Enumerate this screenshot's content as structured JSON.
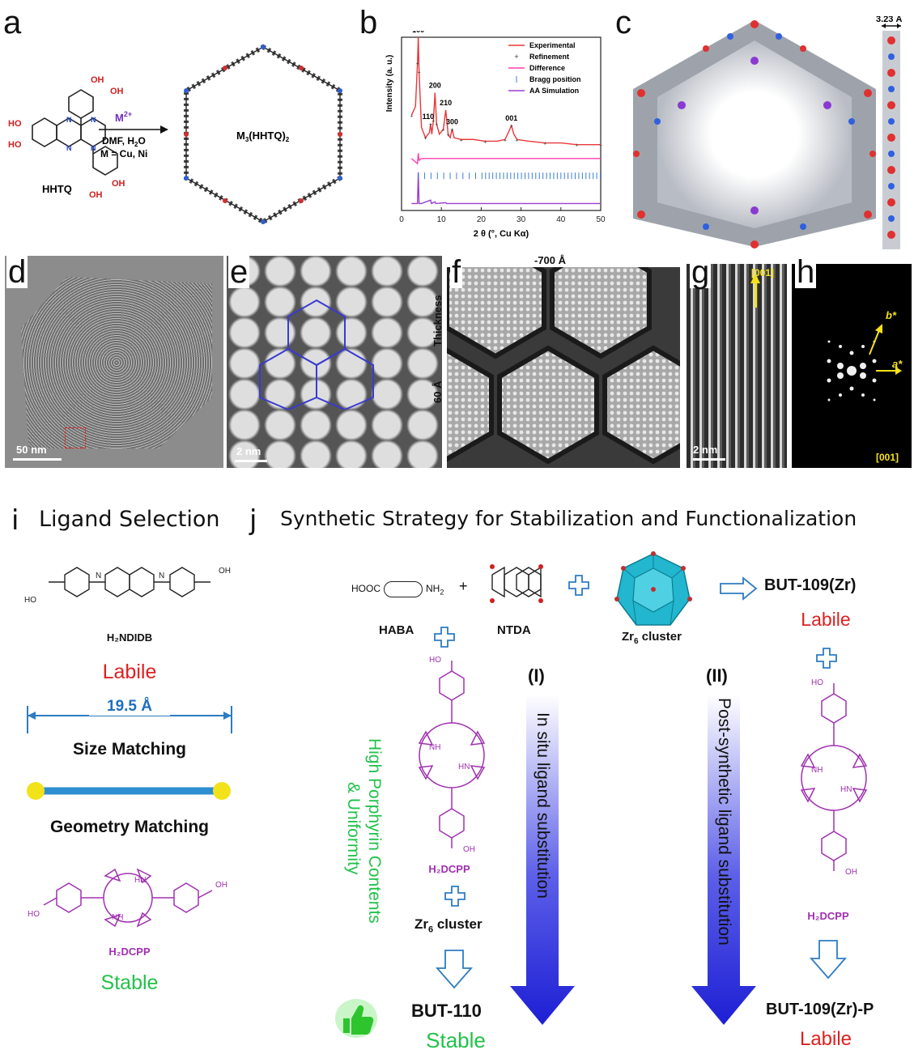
{
  "letters": {
    "a": "a",
    "b": "b",
    "c": "c",
    "d": "d",
    "e": "e",
    "f": "f",
    "g": "g",
    "h": "h",
    "i": "i",
    "j": "j"
  },
  "panel_a": {
    "monomer": "HHTQ",
    "metal": "M",
    "metal_sup": "2+",
    "cond_line1": "DMF, H",
    "cond_line1_sub": "2",
    "cond_line1_end": "O",
    "cond_line2": "M = Cu, Ni",
    "product": "M",
    "product_sub1": "3",
    "product_mid": "(HHTQ)",
    "product_sub2": "2"
  },
  "panel_c": {
    "spacing": "3.23 Å"
  },
  "panel_d": {
    "scale": "50 nm"
  },
  "panel_e": {
    "scale": "2 nm"
  },
  "panel_f": {
    "defocus": "-700 Å",
    "thickness_value": "60 Å",
    "thickness_label": "Thickness"
  },
  "panel_g": {
    "scale": "2 nm",
    "direction": "[001]"
  },
  "panel_h": {
    "astar": "a*",
    "bstar": "b*",
    "zone": "[001]"
  },
  "panel_i": {
    "title": "Ligand Selection",
    "ligand1": "H₂NDIDB",
    "labile": "Labile",
    "length": "19.5 Å",
    "size_matching": "Size Matching",
    "geometry_matching": "Geometry Matching",
    "ligand2": "H₂DCPP",
    "stable": "Stable"
  },
  "panel_j": {
    "title": "Synthetic Strategy for Stabilization and Functionalization",
    "haba_formula_left": "HOOC",
    "haba_formula_right": "NH",
    "haba_sub": "2",
    "haba": "HABA",
    "plus": "+",
    "ntda": "NTDA",
    "zr6_cluster": "Zr",
    "zr6_sub": "6",
    "cluster_word": " cluster",
    "but109": "BUT-109(Zr)",
    "labile1": "Labile",
    "route1": "(I)",
    "route1_text": "In situ ligand substitution",
    "route2": "(II)",
    "route2_text": "Post-synthetic ligand substitution",
    "green_line1": "High Porphyrin Contents",
    "green_line2": "& Uniformity",
    "h2dcpp": "H₂DCPP",
    "but110": "BUT-110",
    "stable": "Stable",
    "but109p": "BUT-109(Zr)-P",
    "labile2": "Labile"
  },
  "chart_data": {
    "type": "line",
    "title": "",
    "xlabel": "2 θ (°, Cu Kα)",
    "ylabel": "Intensity (a. u.)",
    "xlim": [
      0,
      50
    ],
    "xticks": [
      "0",
      "10",
      "20",
      "30",
      "40",
      "50"
    ],
    "peaks": [
      {
        "label": "100",
        "x": 4.2
      },
      {
        "label": "110",
        "x": 7.3
      },
      {
        "label": "200",
        "x": 8.4
      },
      {
        "label": "210",
        "x": 11.1
      },
      {
        "label": "300",
        "x": 12.7
      },
      {
        "label": "001",
        "x": 27.6
      }
    ],
    "legend": [
      "Experimental",
      "Refinement",
      "Difference",
      "Bragg position",
      "AA Simulation"
    ],
    "legend_colors": {
      "Experimental": "#e8373a",
      "Refinement": "#333333",
      "Difference": "#ff3fb0",
      "Bragg position": "#3a7fd5",
      "AA Simulation": "#9a3fd0"
    },
    "series": [
      {
        "name": "Experimental",
        "x": [
          2.5,
          3.5,
          4.0,
          4.2,
          4.4,
          5,
          6,
          7,
          7.3,
          7.6,
          8,
          8.4,
          8.8,
          9.5,
          10.5,
          11.1,
          11.7,
          12.2,
          12.7,
          13.2,
          15,
          18,
          21,
          24,
          26,
          27.2,
          27.6,
          28.2,
          29,
          32,
          36,
          40,
          44,
          48,
          50
        ],
        "y": [
          0.55,
          0.6,
          0.85,
          1.0,
          0.8,
          0.48,
          0.42,
          0.45,
          0.5,
          0.44,
          0.52,
          0.68,
          0.5,
          0.44,
          0.47,
          0.58,
          0.44,
          0.42,
          0.47,
          0.42,
          0.41,
          0.41,
          0.4,
          0.4,
          0.41,
          0.47,
          0.49,
          0.44,
          0.41,
          0.4,
          0.39,
          0.39,
          0.38,
          0.38,
          0.38
        ]
      },
      {
        "name": "Difference",
        "x": [
          2.5,
          4.0,
          4.2,
          4.4,
          5,
          8,
          12,
          20,
          30,
          40,
          50
        ],
        "y": [
          0.3,
          0.27,
          0.33,
          0.29,
          0.3,
          0.3,
          0.3,
          0.3,
          0.3,
          0.3,
          0.3
        ]
      },
      {
        "name": "AA Simulation",
        "x": [
          2.5,
          4.0,
          4.2,
          4.4,
          5,
          7.3,
          7.5,
          8.4,
          8.6,
          11.1,
          11.3,
          14,
          20,
          30,
          50
        ],
        "y": [
          0.04,
          0.04,
          0.22,
          0.04,
          0.04,
          0.06,
          0.04,
          0.05,
          0.04,
          0.045,
          0.04,
          0.04,
          0.04,
          0.04,
          0.04
        ]
      }
    ],
    "legend_placement": "top-right",
    "grid": false
  }
}
